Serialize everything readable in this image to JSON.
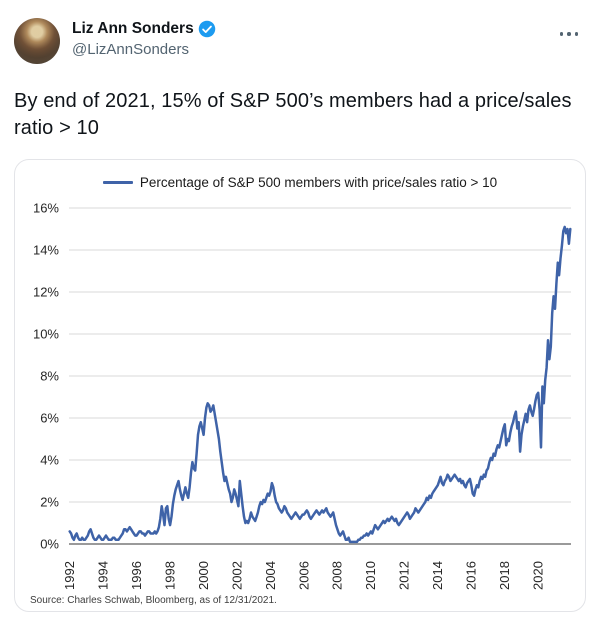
{
  "tweet": {
    "author_name": "Liz Ann Sonders",
    "author_handle": "@LizAnnSonders",
    "verified": true,
    "body": "By end of 2021, 15% of S&P 500’s members had a price/sales ratio > 10"
  },
  "colors": {
    "verified_badge": "#1d9bf0",
    "handle_gray": "#536471",
    "text": "#0f1419",
    "gridline": "#dadada",
    "zero_axis": "#8c8c8c",
    "line": "#3f63a8"
  },
  "chart_data": {
    "type": "line",
    "legend": "Percentage of S&P 500 members with price/sales ratio > 10",
    "source": "Source: Charles Schwab, Bloomberg, as of 12/31/2021.",
    "line_color": "#3f63a8",
    "grid": "horizontal-only",
    "legend_position": "top-center",
    "ylim": [
      0,
      16
    ],
    "yticks": [
      0,
      2,
      4,
      6,
      8,
      10,
      12,
      14,
      16
    ],
    "ytick_suffix": "%",
    "x_start": 1992,
    "x_end": 2022,
    "xticks": [
      1992,
      1994,
      1996,
      1998,
      2000,
      2002,
      2004,
      2006,
      2008,
      2010,
      2012,
      2014,
      2016,
      2018,
      2020
    ],
    "frequency": "monthly",
    "series": [
      {
        "name": "Percentage of S&P 500 members with price/sales ratio > 10",
        "start": "1992-01",
        "end": "2021-12",
        "values_monthly": [
          0.6,
          0.5,
          0.3,
          0.2,
          0.4,
          0.5,
          0.3,
          0.2,
          0.2,
          0.3,
          0.2,
          0.2,
          0.3,
          0.4,
          0.6,
          0.7,
          0.5,
          0.3,
          0.2,
          0.2,
          0.3,
          0.4,
          0.3,
          0.2,
          0.2,
          0.3,
          0.4,
          0.3,
          0.2,
          0.2,
          0.2,
          0.3,
          0.3,
          0.2,
          0.2,
          0.2,
          0.3,
          0.4,
          0.5,
          0.7,
          0.7,
          0.6,
          0.7,
          0.8,
          0.7,
          0.6,
          0.5,
          0.4,
          0.4,
          0.5,
          0.6,
          0.6,
          0.5,
          0.5,
          0.4,
          0.5,
          0.6,
          0.6,
          0.5,
          0.5,
          0.5,
          0.6,
          0.5,
          0.6,
          0.8,
          1.2,
          1.8,
          1.4,
          0.9,
          1.7,
          1.8,
          1.2,
          0.9,
          1.3,
          1.9,
          2.3,
          2.6,
          2.8,
          3.0,
          2.6,
          2.3,
          2.1,
          2.4,
          2.7,
          2.4,
          2.2,
          2.7,
          3.4,
          3.9,
          3.6,
          3.5,
          4.3,
          5.2,
          5.6,
          5.8,
          5.5,
          5.2,
          6.0,
          6.5,
          6.7,
          6.6,
          6.3,
          6.4,
          6.6,
          6.2,
          5.8,
          5.4,
          5.0,
          4.4,
          3.9,
          3.4,
          3.0,
          3.2,
          2.9,
          2.6,
          2.4,
          2.0,
          2.2,
          2.6,
          2.4,
          2.1,
          1.8,
          3.0,
          2.4,
          1.8,
          1.3,
          1.0,
          1.1,
          1.0,
          1.2,
          1.5,
          1.3,
          1.2,
          1.1,
          1.3,
          1.5,
          1.8,
          2.0,
          1.9,
          2.1,
          2.0,
          2.2,
          2.4,
          2.3,
          2.5,
          2.9,
          2.7,
          2.3,
          2.0,
          1.9,
          1.7,
          1.6,
          1.5,
          1.6,
          1.8,
          1.7,
          1.5,
          1.4,
          1.3,
          1.2,
          1.3,
          1.4,
          1.5,
          1.4,
          1.3,
          1.2,
          1.3,
          1.4,
          1.4,
          1.5,
          1.6,
          1.5,
          1.3,
          1.2,
          1.3,
          1.4,
          1.5,
          1.6,
          1.5,
          1.4,
          1.5,
          1.6,
          1.5,
          1.6,
          1.7,
          1.5,
          1.4,
          1.3,
          1.4,
          1.5,
          1.2,
          0.9,
          0.7,
          0.5,
          0.4,
          0.5,
          0.6,
          0.4,
          0.2,
          0.2,
          0.3,
          0.1,
          0.1,
          0.1,
          0.1,
          0.1,
          0.1,
          0.2,
          0.2,
          0.3,
          0.3,
          0.4,
          0.4,
          0.5,
          0.4,
          0.5,
          0.6,
          0.5,
          0.7,
          0.9,
          0.8,
          0.7,
          0.8,
          0.9,
          1.0,
          1.1,
          1.0,
          1.1,
          1.2,
          1.1,
          1.2,
          1.3,
          1.2,
          1.1,
          1.2,
          1.0,
          0.9,
          1.0,
          1.1,
          1.2,
          1.3,
          1.4,
          1.5,
          1.4,
          1.2,
          1.3,
          1.4,
          1.5,
          1.7,
          1.6,
          1.5,
          1.6,
          1.7,
          1.8,
          1.9,
          2.0,
          2.2,
          2.1,
          2.3,
          2.2,
          2.4,
          2.5,
          2.6,
          2.7,
          2.8,
          3.0,
          3.2,
          2.9,
          2.8,
          3.0,
          3.1,
          3.3,
          3.2,
          3.0,
          3.1,
          3.2,
          3.3,
          3.2,
          3.1,
          3.0,
          3.1,
          2.9,
          3.0,
          2.8,
          2.7,
          2.9,
          3.0,
          3.1,
          2.8,
          2.4,
          2.3,
          2.6,
          2.8,
          2.7,
          3.0,
          3.2,
          3.1,
          3.3,
          3.2,
          3.5,
          3.6,
          3.9,
          4.1,
          4.0,
          4.3,
          4.2,
          4.5,
          4.7,
          4.6,
          4.9,
          5.2,
          5.5,
          5.7,
          4.7,
          5.0,
          4.9,
          5.3,
          5.6,
          5.8,
          6.1,
          6.3,
          5.5,
          5.8,
          4.4,
          5.2,
          5.6,
          5.9,
          6.2,
          5.8,
          6.4,
          6.6,
          6.3,
          6.1,
          6.4,
          6.8,
          7.1,
          7.2,
          6.4,
          4.6,
          7.5,
          6.7,
          7.8,
          8.4,
          9.7,
          8.8,
          9.4,
          11.0,
          11.8,
          11.2,
          12.4,
          13.4,
          12.8,
          13.6,
          14.2,
          14.9,
          15.1,
          14.8,
          15.0,
          14.3,
          15.0
        ]
      }
    ]
  }
}
